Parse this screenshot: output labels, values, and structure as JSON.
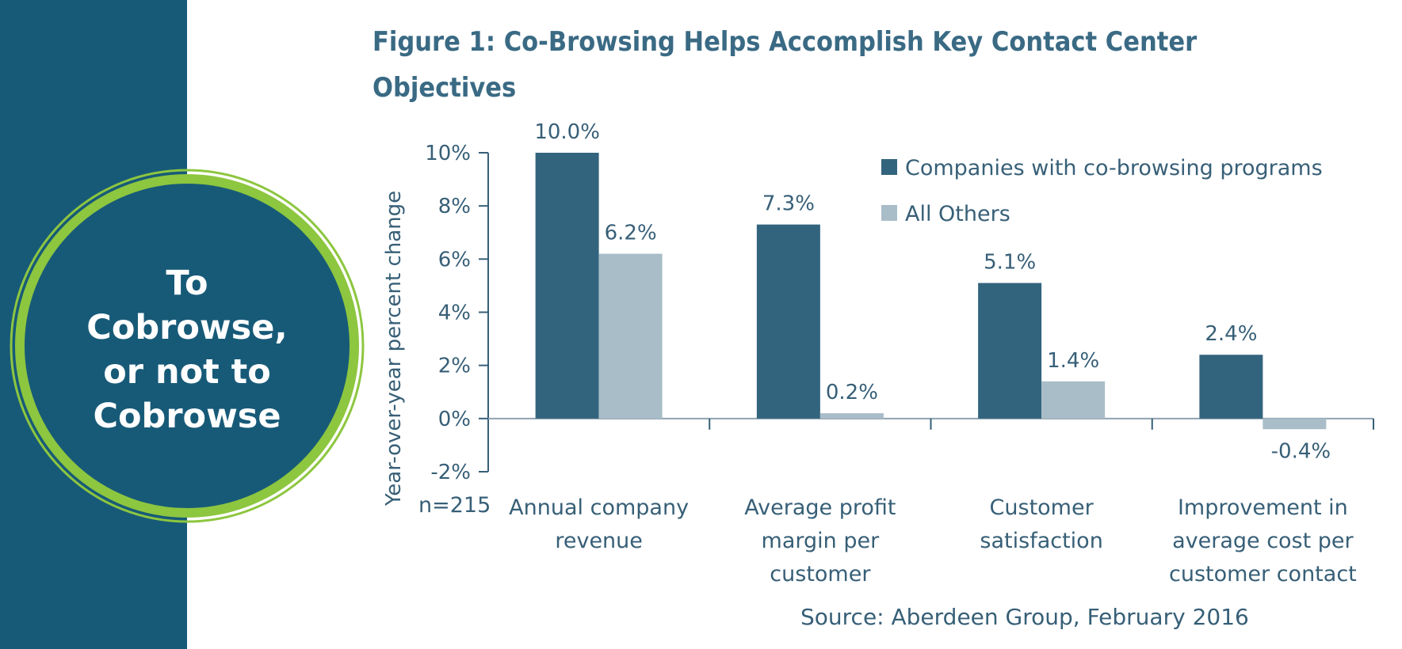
{
  "badge": {
    "lines": [
      "To",
      "Cobrowse,",
      "or not to",
      "Cobrowse"
    ]
  },
  "figure": {
    "title_lines": [
      "Figure 1: Co-Browsing Helps Accomplish Key Contact Center",
      "Objectives"
    ],
    "source": "Source: Aberdeen Group, February 2016",
    "sample_note": "n=215"
  },
  "colors": {
    "band": "#175a78",
    "ring": "#8dc63f",
    "series_primary": "#33647e",
    "series_secondary": "#a9bdc8",
    "text": "#375f77"
  },
  "chart_data": {
    "type": "bar",
    "title": "Figure 1: Co-Browsing Helps Accomplish Key Contact Center Objectives",
    "ylabel": "Year-over-year percent change",
    "xlabel": "",
    "ylim": [
      -2,
      10
    ],
    "yticks": [
      -2,
      0,
      2,
      4,
      6,
      8,
      10
    ],
    "ytick_labels": [
      "-2%",
      "0%",
      "2%",
      "4%",
      "6%",
      "8%",
      "10%"
    ],
    "grid": false,
    "legend_position": "top-right",
    "categories": [
      [
        "Annual company",
        "revenue"
      ],
      [
        "Average profit",
        "margin per",
        "customer"
      ],
      [
        "Customer",
        "satisfaction"
      ],
      [
        "Improvement in",
        "average cost per",
        "customer contact"
      ]
    ],
    "series": [
      {
        "name": "Companies with co-browsing programs",
        "color": "#33647e",
        "values": [
          10.0,
          7.3,
          5.1,
          2.4
        ],
        "labels": [
          "10.0%",
          "7.3%",
          "5.1%",
          "2.4%"
        ]
      },
      {
        "name": "All Others",
        "color": "#a9bdc8",
        "values": [
          6.2,
          0.2,
          1.4,
          -0.4
        ],
        "labels": [
          "6.2%",
          "0.2%",
          "1.4%",
          "-0.4%"
        ]
      }
    ]
  }
}
